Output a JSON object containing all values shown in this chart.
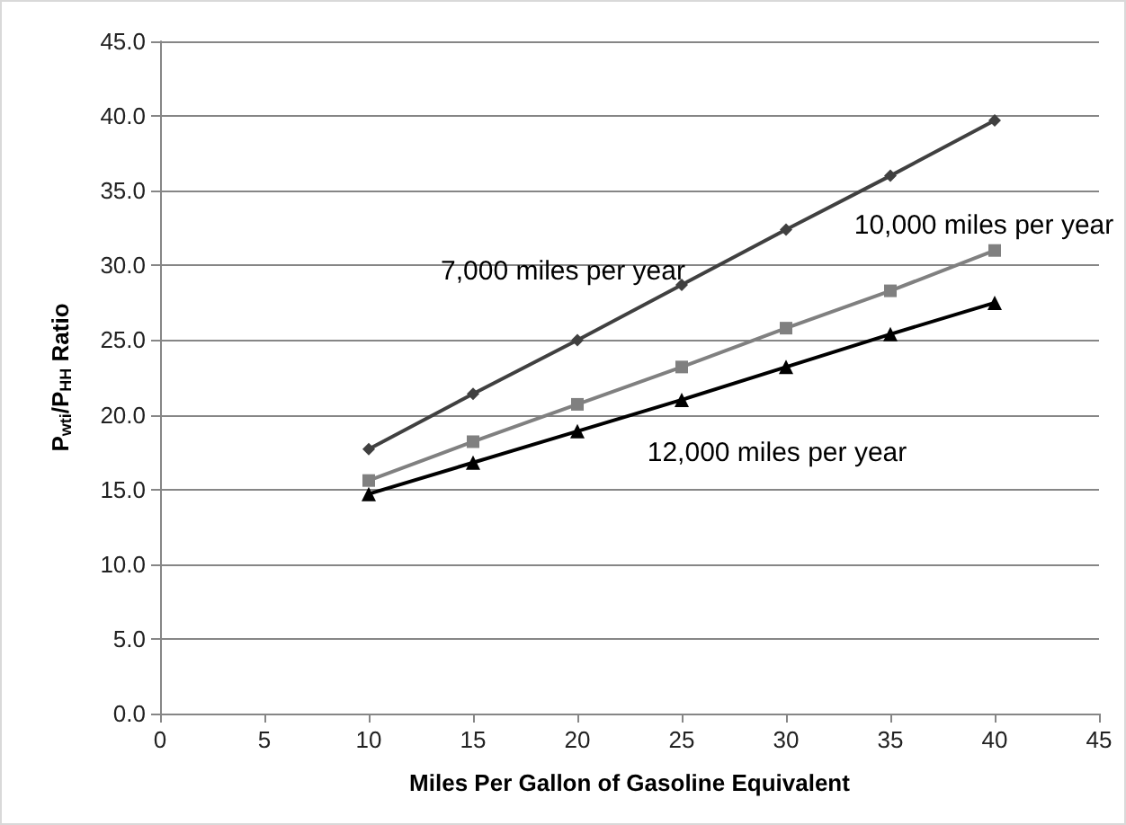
{
  "chart_data": {
    "type": "line",
    "xlabel": "Miles Per Gallon of Gasoline Equivalent",
    "ylabel": "P$_{wti}$/P$_{HH}$ Ratio",
    "x": [
      10,
      15,
      20,
      25,
      30,
      35,
      40
    ],
    "series": [
      {
        "name": "7,000 miles per year",
        "color": "#404040",
        "marker": "diamond",
        "values": [
          17.7,
          21.4,
          25.0,
          28.7,
          32.4,
          36.0,
          39.7
        ]
      },
      {
        "name": "10,000 miles per year",
        "color": "#808080",
        "marker": "square",
        "values": [
          15.6,
          18.2,
          20.7,
          23.2,
          25.8,
          28.3,
          31.0
        ]
      },
      {
        "name": "12,000 miles per year",
        "color": "#000000",
        "marker": "triangle",
        "values": [
          14.7,
          16.8,
          18.9,
          21.0,
          23.2,
          25.4,
          27.5
        ]
      }
    ],
    "xlim": [
      0,
      45
    ],
    "xticks": [
      0,
      5,
      10,
      15,
      20,
      25,
      30,
      35,
      40,
      45
    ],
    "ylim": [
      0,
      45
    ],
    "yticks": [
      {
        "value": 0,
        "label": "0.0"
      },
      {
        "value": 5,
        "label": "5.0"
      },
      {
        "value": 10,
        "label": "10.0"
      },
      {
        "value": 15,
        "label": "15.0"
      },
      {
        "value": 20,
        "label": "20.0"
      },
      {
        "value": 25,
        "label": "25.0"
      },
      {
        "value": 30,
        "label": "30.0"
      },
      {
        "value": 35,
        "label": "35.0"
      },
      {
        "value": 40,
        "label": "40.0"
      },
      {
        "value": 45,
        "label": "45.0"
      }
    ],
    "grid": "y",
    "legend": false
  }
}
